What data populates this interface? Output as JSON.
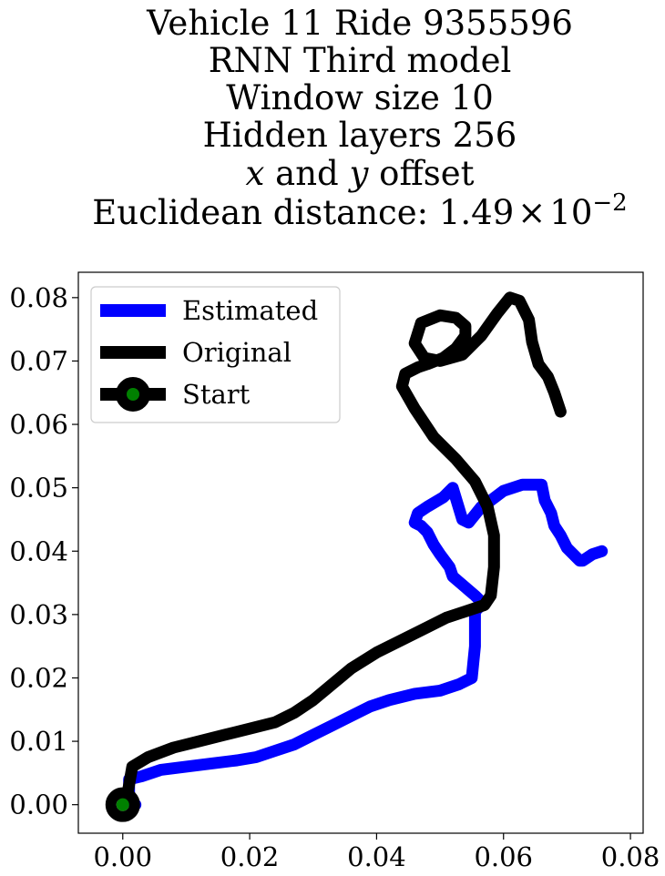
{
  "chart_data": {
    "type": "line",
    "title_lines": [
      "Vehicle 11 Ride 9355596",
      "RNN Third model",
      "Window size 10",
      "Hidden layers 256"
    ],
    "title_offset_line": {
      "x_symbol": "x",
      "mid": " and ",
      "y_symbol": "y",
      "tail": " offset"
    },
    "title_distance_line": {
      "prefix": "Euclidean distance: ",
      "mantissa": "1.49",
      "times": "×",
      "base": "10",
      "exponent": "−2"
    },
    "xlim": [
      -0.007,
      0.082
    ],
    "ylim": [
      -0.0045,
      0.084
    ],
    "xticks": [
      "0.00",
      "0.02",
      "0.04",
      "0.06",
      "0.08"
    ],
    "yticks": [
      "0.00",
      "0.01",
      "0.02",
      "0.03",
      "0.04",
      "0.05",
      "0.06",
      "0.07",
      "0.08"
    ],
    "xtick_values": [
      0.0,
      0.02,
      0.04,
      0.06,
      0.08
    ],
    "ytick_values": [
      0.0,
      0.01,
      0.02,
      0.03,
      0.04,
      0.05,
      0.06,
      0.07,
      0.08
    ],
    "legend_position": "upper-left",
    "grid": false,
    "series": [
      {
        "name": "Estimated",
        "color": "#0000ff",
        "x": [
          0.002,
          0.001,
          0.001,
          0.003,
          0.006,
          0.01,
          0.014,
          0.018,
          0.021,
          0.024,
          0.027,
          0.03,
          0.033,
          0.036,
          0.039,
          0.042,
          0.046,
          0.05,
          0.053,
          0.055,
          0.0555,
          0.0555,
          0.0555,
          0.0565,
          0.0565,
          0.0555,
          0.052,
          0.0515,
          0.05,
          0.049,
          0.048,
          0.047,
          0.046,
          0.0465,
          0.048,
          0.0505,
          0.052,
          0.0535,
          0.0545,
          0.0565,
          0.058,
          0.06,
          0.063,
          0.066,
          0.0665,
          0.0675,
          0.068,
          0.069,
          0.07,
          0.071,
          0.072,
          0.0725,
          0.074,
          0.0755
        ],
        "y": [
          0.0,
          0.001,
          0.004,
          0.0045,
          0.0055,
          0.006,
          0.0065,
          0.007,
          0.0075,
          0.0085,
          0.0095,
          0.011,
          0.0125,
          0.014,
          0.0155,
          0.0165,
          0.0175,
          0.018,
          0.019,
          0.02,
          0.025,
          0.029,
          0.0305,
          0.0315,
          0.032,
          0.033,
          0.036,
          0.0375,
          0.0395,
          0.041,
          0.043,
          0.044,
          0.0445,
          0.046,
          0.047,
          0.0485,
          0.05,
          0.045,
          0.0445,
          0.047,
          0.048,
          0.0495,
          0.0505,
          0.0505,
          0.048,
          0.046,
          0.044,
          0.0425,
          0.0405,
          0.0395,
          0.0385,
          0.0385,
          0.0395,
          0.04
        ]
      },
      {
        "name": "Original",
        "color": "#000000",
        "x": [
          0.0,
          0.0008,
          0.0015,
          0.004,
          0.008,
          0.012,
          0.016,
          0.02,
          0.024,
          0.027,
          0.03,
          0.033,
          0.036,
          0.04,
          0.044,
          0.048,
          0.051,
          0.054,
          0.057,
          0.058,
          0.0585,
          0.0585,
          0.0575,
          0.0555,
          0.0525,
          0.049,
          0.046,
          0.044,
          0.0445,
          0.0465,
          0.048,
          0.0505,
          0.0525,
          0.054,
          0.054,
          0.0525,
          0.05,
          0.047,
          0.046,
          0.0475,
          0.05,
          0.0535,
          0.0565,
          0.059,
          0.061,
          0.0625,
          0.064,
          0.0645,
          0.0655,
          0.067,
          0.068,
          0.069
        ],
        "y": [
          0.0,
          0.002,
          0.006,
          0.0075,
          0.009,
          0.01,
          0.011,
          0.012,
          0.013,
          0.0145,
          0.0165,
          0.019,
          0.0215,
          0.024,
          0.026,
          0.028,
          0.0295,
          0.0305,
          0.0315,
          0.033,
          0.0375,
          0.0425,
          0.047,
          0.051,
          0.0545,
          0.058,
          0.0625,
          0.066,
          0.068,
          0.069,
          0.0695,
          0.0705,
          0.072,
          0.074,
          0.0755,
          0.0768,
          0.0772,
          0.076,
          0.0728,
          0.0705,
          0.07,
          0.071,
          0.074,
          0.0775,
          0.08,
          0.0795,
          0.0765,
          0.073,
          0.0695,
          0.0675,
          0.065,
          0.062
        ]
      }
    ],
    "start_marker": {
      "name": "Start",
      "x": 0.0,
      "y": 0.0,
      "face_color": "#008000",
      "edge_color": "#000000"
    }
  }
}
